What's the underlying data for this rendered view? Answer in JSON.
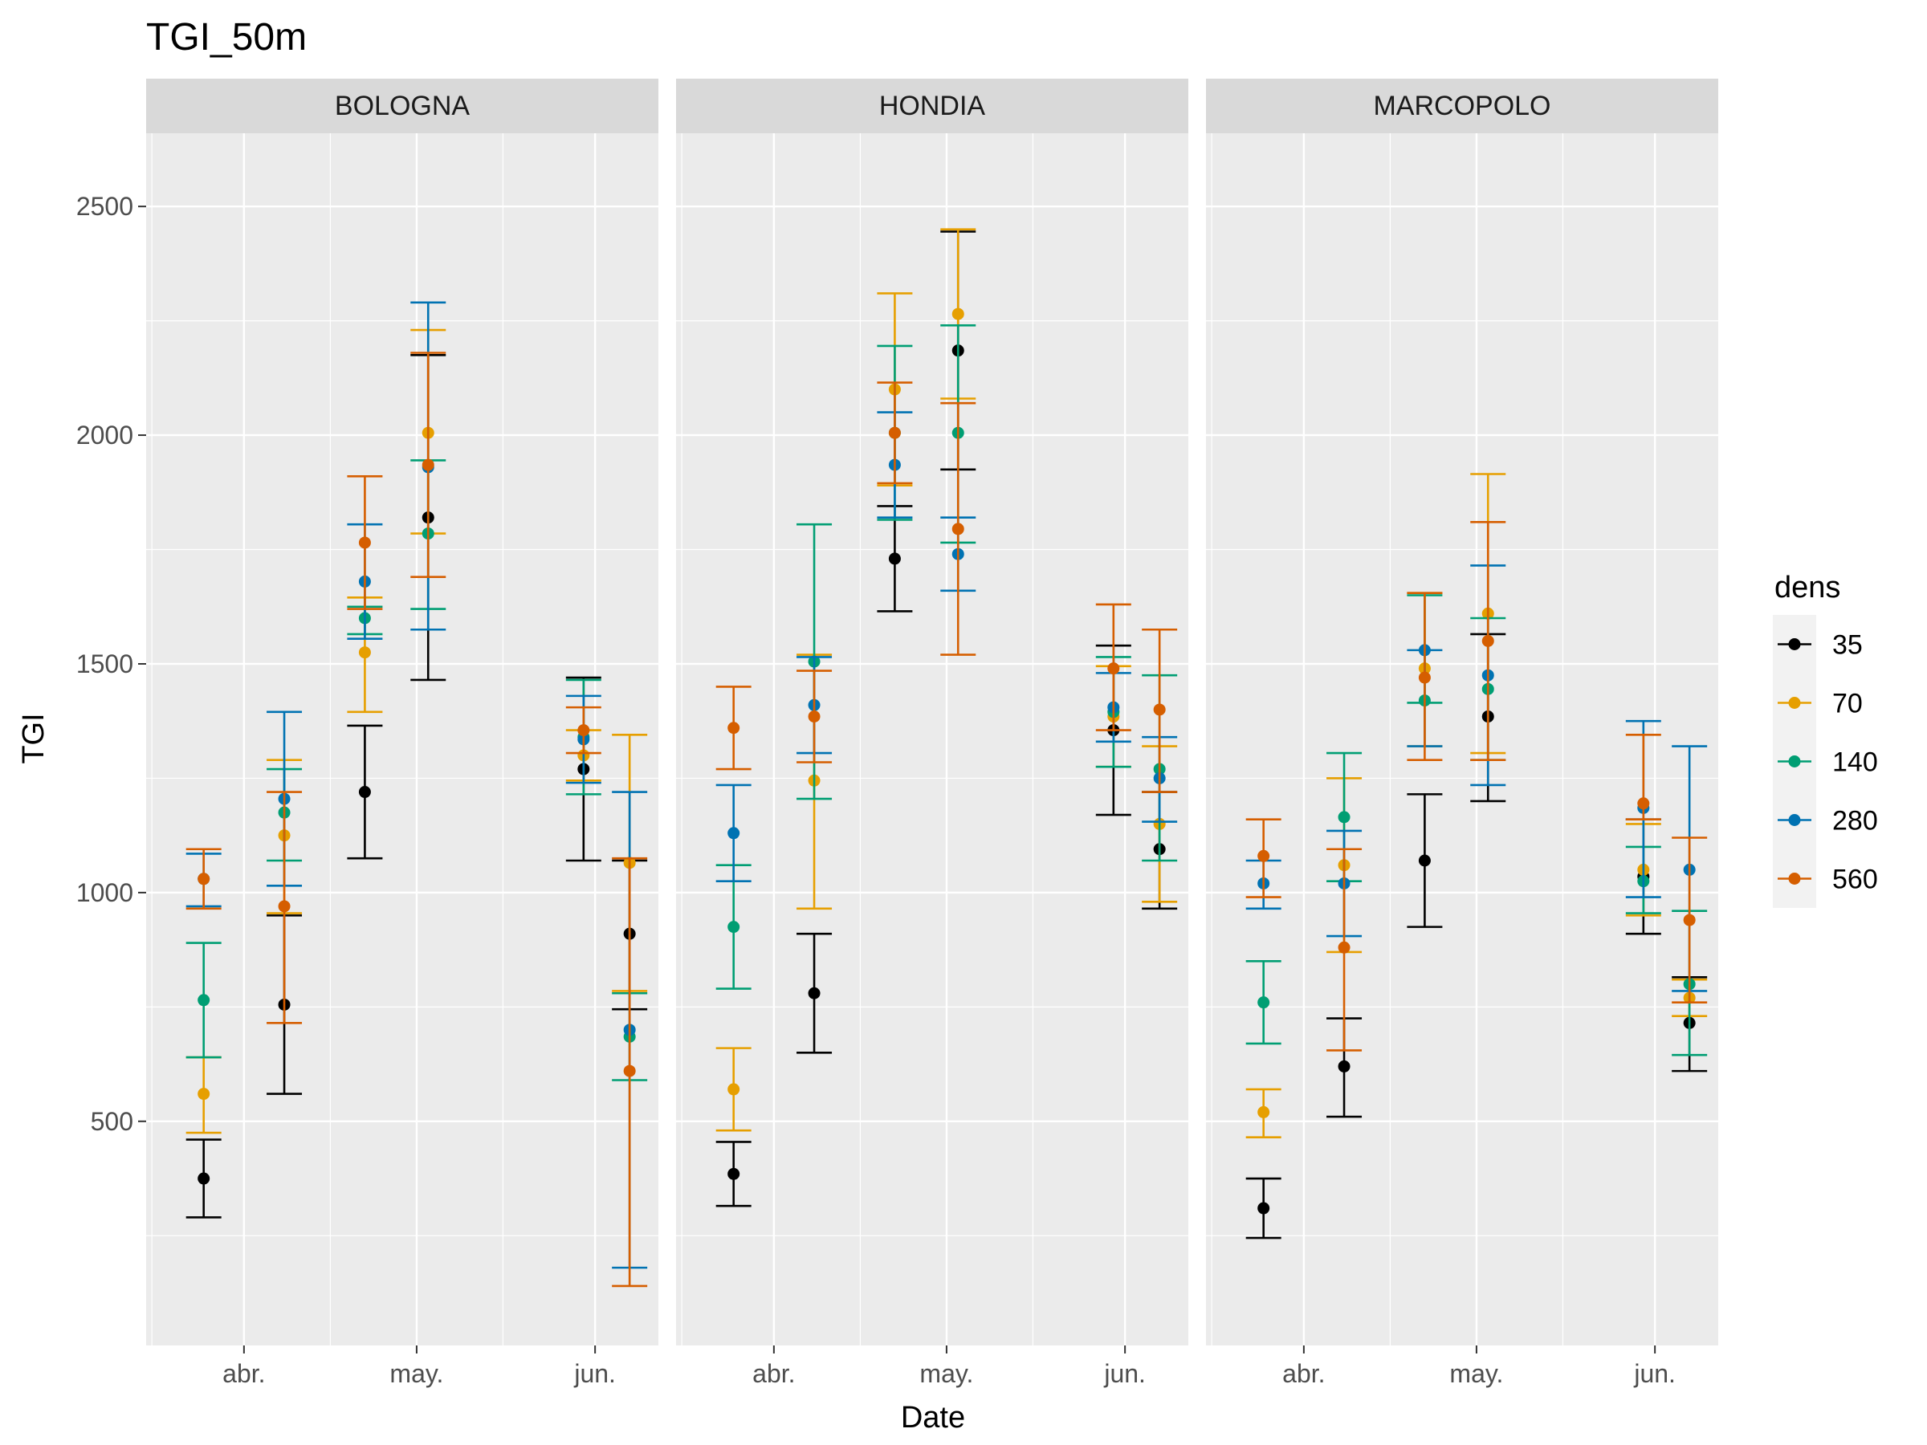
{
  "chart_data": {
    "type": "scatter",
    "title": "TGI_50m",
    "xlabel": "Date",
    "ylabel": "TGI",
    "ylim": [
      10,
      2660
    ],
    "y_ticks": [
      500,
      1000,
      1500,
      2000,
      2500
    ],
    "x_tick_labels": [
      "abr.",
      "may.",
      "jun."
    ],
    "grid": true,
    "error_bars": true,
    "legend": {
      "title": "dens",
      "placement": "right"
    },
    "facets": [
      "BOLOGNA",
      "HONDIA",
      "MARCOPOLO"
    ],
    "colors": {
      "35": "#000000",
      "70": "#E69F00",
      "140": "#009E73",
      "280": "#0072B2",
      "560": "#D55E00"
    },
    "series_order": [
      "35",
      "70",
      "140",
      "280",
      "560"
    ],
    "panels": [
      {
        "facet": "BOLOGNA",
        "dates": [
          "2021-03-25",
          "2021-04-08",
          "2021-04-22",
          "2021-05-03",
          "2021-05-30",
          "2021-06-07"
        ],
        "series": [
          {
            "name": "35",
            "values": [
              [
                375,
                290,
                460
              ],
              [
                755,
                560,
                950
              ],
              [
                1220,
                1075,
                1365
              ],
              [
                1820,
                1465,
                2175
              ],
              [
                1270,
                1070,
                1470
              ],
              [
                910,
                745,
                1070
              ]
            ]
          },
          {
            "name": "70",
            "values": [
              [
                560,
                475,
                640
              ],
              [
                1125,
                955,
                1290
              ],
              [
                1525,
                1395,
                1645
              ],
              [
                2005,
                1785,
                2230
              ],
              [
                1300,
                1245,
                1355
              ],
              [
                1065,
                785,
                1345
              ]
            ]
          },
          {
            "name": "140",
            "values": [
              [
                765,
                640,
                890
              ],
              [
                1175,
                1070,
                1270
              ],
              [
                1600,
                1565,
                1625
              ],
              [
                1785,
                1620,
                1945
              ],
              [
                1340,
                1215,
                1465
              ],
              [
                685,
                590,
                780
              ]
            ]
          },
          {
            "name": "280",
            "values": [
              [
                1030,
                970,
                1085
              ],
              [
                1205,
                1015,
                1395
              ],
              [
                1680,
                1555,
                1805
              ],
              [
                1930,
                1575,
                2290
              ],
              [
                1335,
                1240,
                1430
              ],
              [
                700,
                180,
                1220
              ]
            ]
          },
          {
            "name": "560",
            "values": [
              [
                1030,
                965,
                1095
              ],
              [
                970,
                715,
                1220
              ],
              [
                1765,
                1620,
                1910
              ],
              [
                1935,
                1690,
                2180
              ],
              [
                1355,
                1305,
                1405
              ],
              [
                610,
                140,
                1075
              ]
            ]
          }
        ]
      },
      {
        "facet": "HONDIA",
        "dates": [
          "2021-03-25",
          "2021-04-08",
          "2021-04-22",
          "2021-05-03",
          "2021-05-30",
          "2021-06-07"
        ],
        "series": [
          {
            "name": "35",
            "values": [
              [
                385,
                315,
                455
              ],
              [
                780,
                650,
                910
              ],
              [
                1730,
                1615,
                1845
              ],
              [
                2185,
                1925,
                2445
              ],
              [
                1355,
                1170,
                1540
              ],
              [
                1095,
                965,
                1220
              ]
            ]
          },
          {
            "name": "70",
            "values": [
              [
                570,
                480,
                660
              ],
              [
                1245,
                965,
                1520
              ],
              [
                2100,
                1890,
                2310
              ],
              [
                2265,
                2080,
                2450
              ],
              [
                1385,
                1275,
                1495
              ],
              [
                1150,
                980,
                1320
              ]
            ]
          },
          {
            "name": "140",
            "values": [
              [
                925,
                790,
                1060
              ],
              [
                1505,
                1205,
                1805
              ],
              [
                2005,
                1815,
                2195
              ],
              [
                2005,
                1765,
                2240
              ],
              [
                1395,
                1275,
                1515
              ],
              [
                1270,
                1070,
                1475
              ]
            ]
          },
          {
            "name": "280",
            "values": [
              [
                1130,
                1025,
                1235
              ],
              [
                1410,
                1305,
                1515
              ],
              [
                1935,
                1820,
                2050
              ],
              [
                1740,
                1660,
                1820
              ],
              [
                1405,
                1330,
                1480
              ],
              [
                1250,
                1155,
                1340
              ]
            ]
          },
          {
            "name": "560",
            "values": [
              [
                1360,
                1270,
                1450
              ],
              [
                1385,
                1285,
                1485
              ],
              [
                2005,
                1895,
                2115
              ],
              [
                1795,
                1520,
                2070
              ],
              [
                1490,
                1355,
                1630
              ],
              [
                1400,
                1220,
                1575
              ]
            ]
          }
        ]
      },
      {
        "facet": "MARCOPOLO",
        "dates": [
          "2021-03-25",
          "2021-04-08",
          "2021-04-22",
          "2021-05-03",
          "2021-05-30",
          "2021-06-07"
        ],
        "series": [
          {
            "name": "35",
            "values": [
              [
                310,
                245,
                375
              ],
              [
                620,
                510,
                725
              ],
              [
                1070,
                925,
                1215
              ],
              [
                1385,
                1200,
                1565
              ],
              [
                1035,
                910,
                1160
              ],
              [
                715,
                610,
                815
              ]
            ]
          },
          {
            "name": "70",
            "values": [
              [
                520,
                465,
                570
              ],
              [
                1060,
                870,
                1250
              ],
              [
                1490,
                1320,
                1655
              ],
              [
                1610,
                1305,
                1915
              ],
              [
                1050,
                950,
                1150
              ],
              [
                770,
                730,
                810
              ]
            ]
          },
          {
            "name": "140",
            "values": [
              [
                760,
                670,
                850
              ],
              [
                1165,
                1025,
                1305
              ],
              [
                1420,
                1415,
                1650
              ],
              [
                1445,
                1290,
                1600
              ],
              [
                1025,
                955,
                1100
              ],
              [
                800,
                645,
                960
              ]
            ]
          },
          {
            "name": "280",
            "values": [
              [
                1020,
                965,
                1070
              ],
              [
                1020,
                905,
                1135
              ],
              [
                1530,
                1320,
                1530
              ],
              [
                1475,
                1235,
                1715
              ],
              [
                1185,
                990,
                1375
              ],
              [
                1050,
                785,
                1320
              ]
            ]
          },
          {
            "name": "560",
            "values": [
              [
                1080,
                990,
                1160
              ],
              [
                880,
                655,
                1095
              ],
              [
                1470,
                1290,
                1655
              ],
              [
                1550,
                1290,
                1810
              ],
              [
                1195,
                1160,
                1345
              ],
              [
                940,
                760,
                1120
              ]
            ]
          }
        ]
      }
    ]
  }
}
